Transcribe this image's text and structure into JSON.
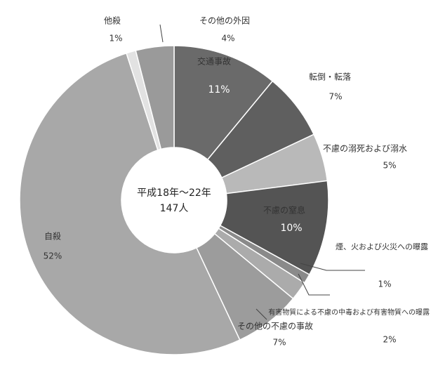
{
  "chart_data": {
    "type": "donut",
    "center_text": [
      "平成18年～22年",
      "147人"
    ],
    "categories": [
      "交通事故",
      "転倒・転落",
      "不慮の溺死および溺水",
      "不慮の窒息",
      "煙、火および火災への曝露",
      "有害物質による不慮の中毒および有害物質への曝露",
      "その他の不慮の事故",
      "自殺",
      "他殺",
      "その他の外因"
    ],
    "values": [
      11,
      7,
      5,
      10,
      1,
      2,
      7,
      52,
      1,
      4
    ],
    "value_labels": [
      "11%",
      "7%",
      "5%",
      "10%",
      "1%",
      "2%",
      "7%",
      "52%",
      "1%",
      "4%"
    ],
    "colors": [
      "#6a6a6a",
      "#5f5f5f",
      "#b9b9b9",
      "#545454",
      "#8a8a8a",
      "#ababab",
      "#9c9c9c",
      "#a8a8a8",
      "#e2e2e2",
      "#9a9a9a"
    ]
  }
}
